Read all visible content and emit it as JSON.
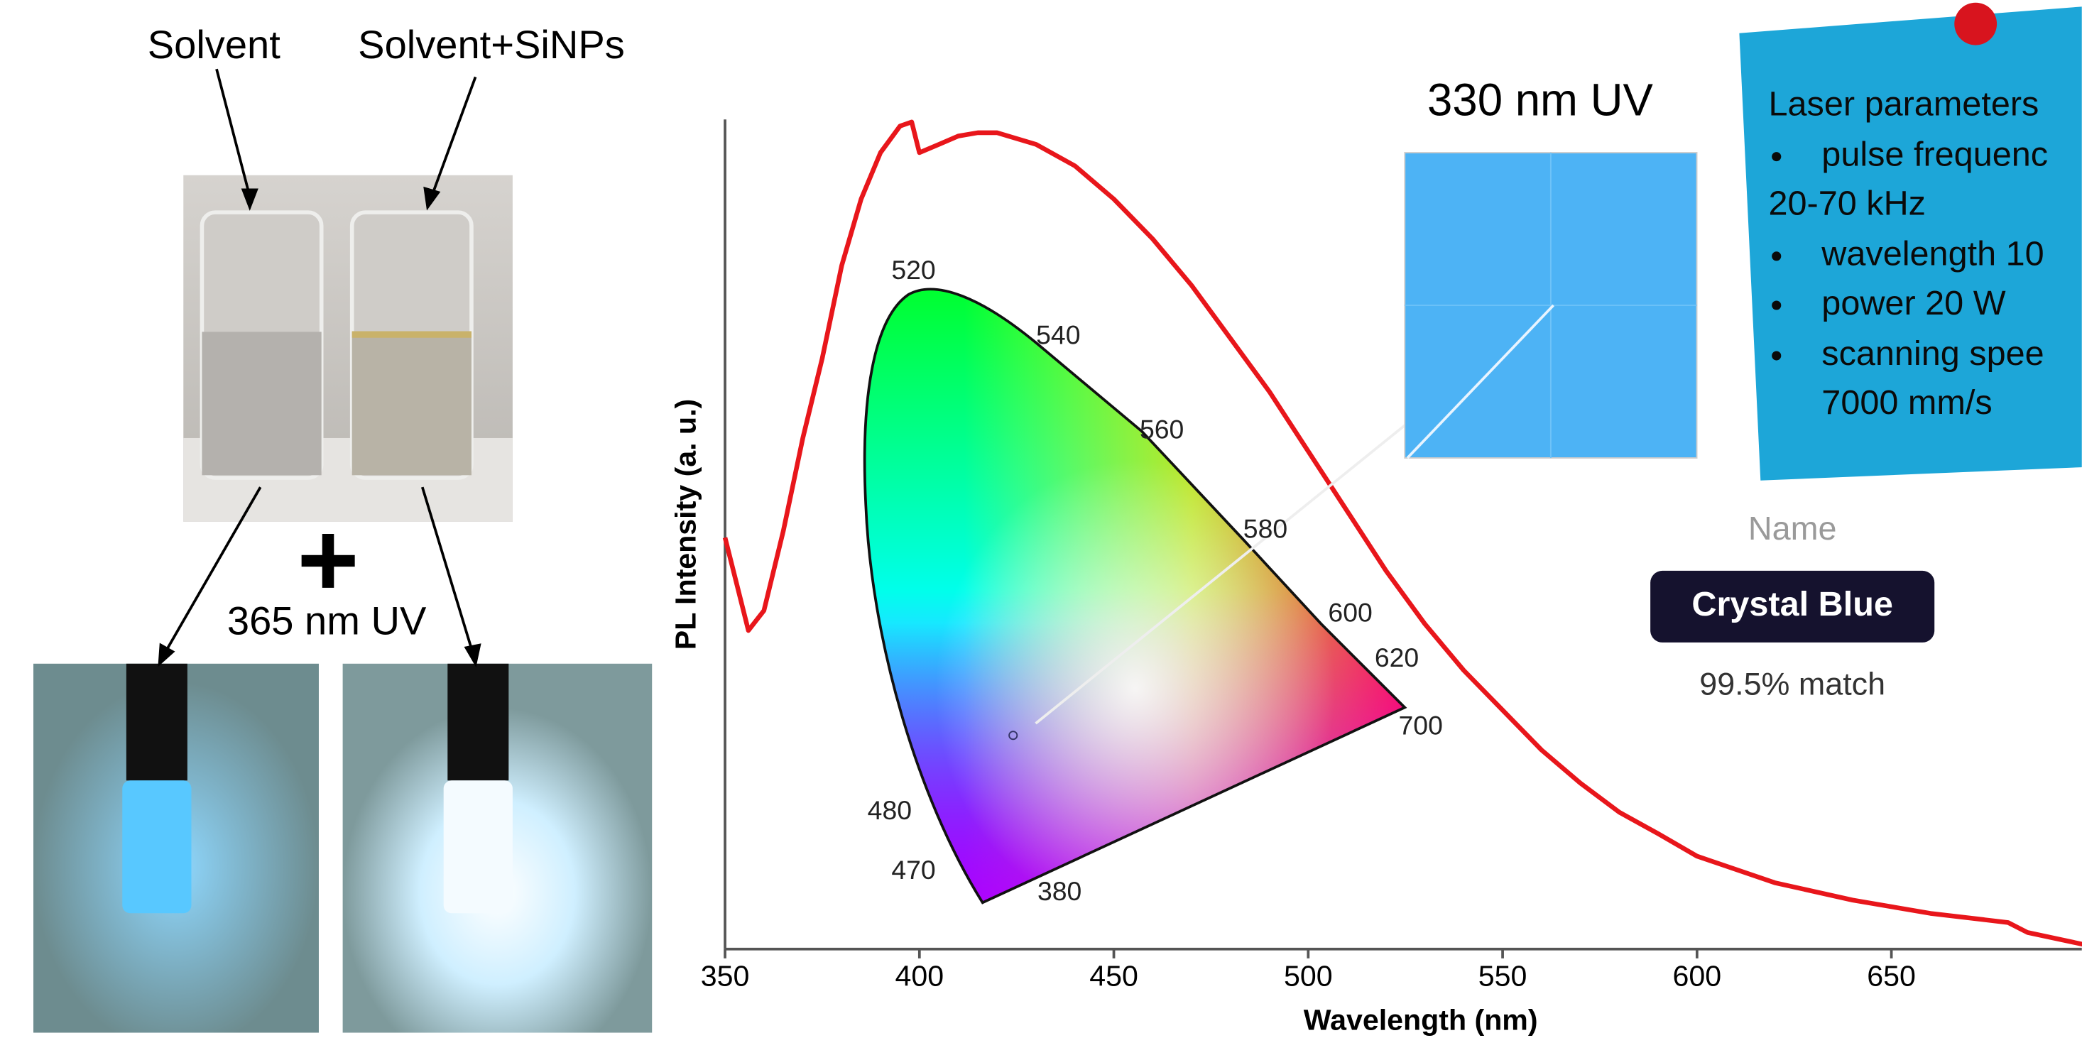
{
  "chart_data": {
    "type": "line",
    "xlabel": "Wavelength (nm)",
    "ylabel": "PL Intensity (a. u.)",
    "x": [
      350,
      353,
      356,
      360,
      365,
      370,
      375,
      380,
      385,
      390,
      395,
      398,
      400,
      405,
      410,
      415,
      420,
      430,
      440,
      450,
      460,
      470,
      480,
      490,
      500,
      510,
      520,
      530,
      540,
      550,
      560,
      570,
      580,
      590,
      600,
      620,
      640,
      660,
      680,
      685,
      700
    ],
    "values": [
      49.6,
      44,
      38.4,
      40.8,
      50.4,
      61.6,
      71.2,
      82.4,
      90.4,
      96,
      99.2,
      99.7,
      96,
      97,
      98,
      98.4,
      98.4,
      97,
      94.4,
      90.4,
      85.6,
      80,
      73.6,
      67.2,
      60,
      52.8,
      45.6,
      39.2,
      33.6,
      28.8,
      24,
      20,
      16.5,
      13.9,
      11.2,
      8,
      5.9,
      4.3,
      3.2,
      2,
      0.5
    ],
    "color": "#e8161b",
    "xlim": [
      350,
      700
    ],
    "xticks": [
      350,
      400,
      450,
      500,
      550,
      600,
      650
    ],
    "ylim": [
      0,
      100
    ]
  },
  "photos": {
    "label_left": "Solvent",
    "label_right": "Solvent+SiNPs",
    "plus": "+",
    "uv": "365 nm UV"
  },
  "cie_labels": [
    "520",
    "540",
    "560",
    "580",
    "600",
    "620",
    "700",
    "480",
    "470",
    "380"
  ],
  "inset": {
    "title": "330 nm UV"
  },
  "note": {
    "lines": [
      "Laser parameters",
      "pulse frequenc",
      "20-70 kHz",
      "wavelength 10",
      "power 20 W",
      "scanning spee",
      "7000 mm/s"
    ]
  },
  "match": {
    "heading": "Name",
    "name": "Crystal Blue",
    "score": "99.5% match"
  }
}
